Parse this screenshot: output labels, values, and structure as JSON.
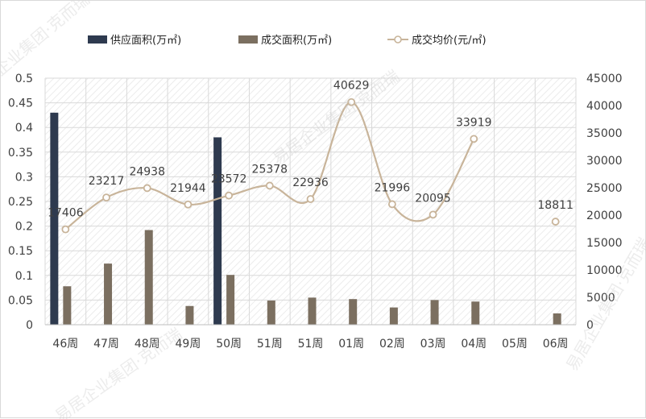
{
  "chart_data": {
    "type": "bar",
    "categories": [
      "46周",
      "47周",
      "48周",
      "49周",
      "50周",
      "51周",
      "51周",
      "01周",
      "02周",
      "03周",
      "04周",
      "05周",
      "06周"
    ],
    "series": [
      {
        "name": "供应面积(万㎡)",
        "type": "bar",
        "axis": "left",
        "color": "#2e3a4f",
        "values": [
          0.43,
          null,
          null,
          null,
          0.38,
          null,
          null,
          null,
          null,
          null,
          null,
          null,
          null
        ]
      },
      {
        "name": "成交面积(万㎡)",
        "type": "bar",
        "axis": "left",
        "color": "#7b6f60",
        "values": [
          0.078,
          0.124,
          0.192,
          0.038,
          0.101,
          0.049,
          0.055,
          0.052,
          0.035,
          0.05,
          0.047,
          null,
          0.023
        ]
      },
      {
        "name": "成交均价(元/㎡)",
        "type": "line",
        "axis": "right",
        "color": "#c8b49a",
        "values": [
          17406,
          23217,
          24938,
          21944,
          23572,
          25378,
          22936,
          40629,
          21996,
          20095,
          33919,
          null,
          18811
        ],
        "labels": [
          "17406",
          "23217",
          "24938",
          "21944",
          "23572",
          "25378",
          "22936",
          "40629",
          "21996",
          "20095",
          "33919",
          "",
          "18811"
        ]
      }
    ],
    "y_left": {
      "ylim": [
        0,
        0.5
      ],
      "ticks": [
        0,
        0.05,
        0.1,
        0.15,
        0.2,
        0.25,
        0.3,
        0.35,
        0.4,
        0.45,
        0.5
      ],
      "tick_labels": [
        "0",
        "0.05",
        "0.1",
        "0.15",
        "0.2",
        "0.25",
        "0.3",
        "0.35",
        "0.4",
        "0.45",
        "0.5"
      ]
    },
    "y_right": {
      "ylim": [
        0,
        45000
      ],
      "ticks": [
        0,
        5000,
        10000,
        15000,
        20000,
        25000,
        30000,
        35000,
        40000,
        45000
      ],
      "tick_labels": [
        "0",
        "5000",
        "10000",
        "15000",
        "20000",
        "25000",
        "30000",
        "35000",
        "40000",
        "45000"
      ]
    },
    "grid": true,
    "legend_position": "top",
    "line_smooth": true
  },
  "watermark": {
    "text": "易居企业集团·克而瑞"
  }
}
